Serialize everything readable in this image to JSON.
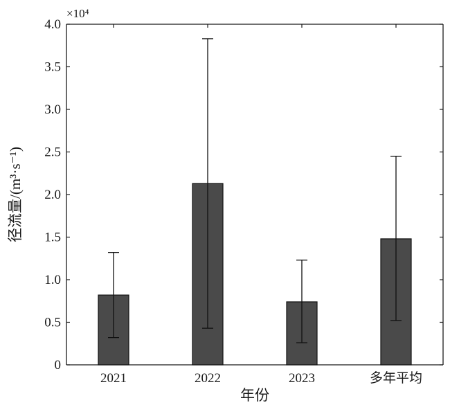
{
  "chart_data": {
    "type": "bar",
    "categories": [
      "2021",
      "2022",
      "2023",
      "多年平均"
    ],
    "values": [
      8200,
      21300,
      7400,
      14800
    ],
    "error_low": [
      3200,
      4300,
      2600,
      5200
    ],
    "error_high": [
      13200,
      38300,
      12300,
      24500
    ],
    "xlabel": "年份",
    "ylabel": "径流量/(m³·s⁻¹)",
    "ylim": [
      0,
      40000
    ],
    "y_ticks": [
      0,
      5000,
      10000,
      15000,
      20000,
      25000,
      30000,
      35000,
      40000
    ],
    "y_tick_labels": [
      "0",
      "0.5",
      "1.0",
      "1.5",
      "2.0",
      "2.5",
      "3.0",
      "3.5",
      "4.0"
    ],
    "y_multiplier": "×10⁴",
    "grid": false,
    "bar_color": "#4a4a4a",
    "axis_color": "#1a1a1a"
  }
}
